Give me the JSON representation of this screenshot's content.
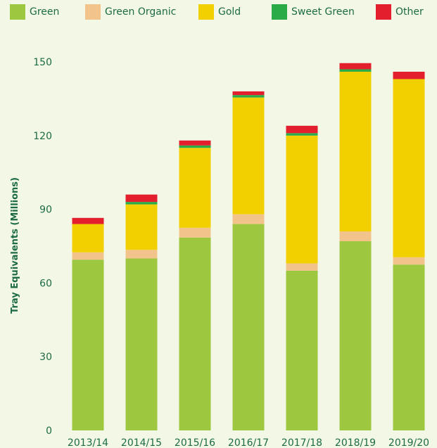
{
  "chart_data": {
    "type": "bar",
    "stacked": true,
    "ylabel": "Tray Equivalents (Millions)",
    "xlabel": "",
    "ylim": [
      0,
      150
    ],
    "yticks": [
      0,
      30,
      60,
      90,
      120,
      150
    ],
    "grid": false,
    "legend_position": "top",
    "categories": [
      "2013/14",
      "2014/15",
      "2015/16",
      "2016/17",
      "2017/18",
      "2018/19",
      "2019/20"
    ],
    "series": [
      {
        "name": "Green",
        "color": "#9cc73f",
        "values": [
          69.5,
          70,
          78.5,
          84,
          65,
          77,
          67.5
        ]
      },
      {
        "name": "Green Organic",
        "color": "#f2c48b",
        "values": [
          3,
          3.5,
          4,
          4,
          3,
          4,
          3
        ]
      },
      {
        "name": "Gold",
        "color": "#f2d000",
        "values": [
          11.5,
          18.5,
          32.5,
          47.5,
          52,
          65,
          72.5
        ]
      },
      {
        "name": "Sweet Green",
        "color": "#2aab47",
        "values": [
          0,
          1,
          1,
          1,
          1,
          1,
          0
        ]
      },
      {
        "name": "Other",
        "color": "#e31e2d",
        "values": [
          2.5,
          3,
          2,
          1.5,
          3,
          2.5,
          3
        ]
      }
    ]
  }
}
